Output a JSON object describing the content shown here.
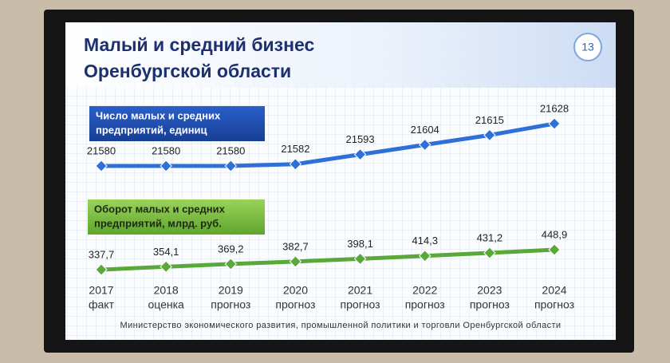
{
  "header": {
    "title": [
      "Малый и средний бизнес",
      "Оренбургской области"
    ],
    "page_number": "13"
  },
  "footer": "Министерство экономического развития, промышленной политики и торговли Оренбургской области",
  "chart_data": [
    {
      "type": "line",
      "title": [
        "Число малых и средних",
        "предприятий, единиц"
      ],
      "color": "#2e6fd8",
      "values": [
        21580,
        21580,
        21580,
        21582,
        21593,
        21604,
        21615,
        21628
      ]
    },
    {
      "type": "line",
      "title": [
        "Оборот малых и средних",
        "предприятий, млрд. руб."
      ],
      "color": "#5aa83a",
      "categories": [
        "2017",
        "2018",
        "2019",
        "2020",
        "2021",
        "2022",
        "2023",
        "2024"
      ],
      "x_sublabels": [
        "факт",
        "оценка",
        "прогноз",
        "прогноз",
        "прогноз",
        "прогноз",
        "прогноз",
        "прогноз"
      ],
      "values": [
        337.7,
        354.1,
        369.2,
        382.7,
        398.1,
        414.3,
        431.2,
        448.9
      ],
      "value_labels": [
        "337,7",
        "354,1",
        "369,2",
        "382,7",
        "398,1",
        "414,3",
        "431,2",
        "448,9"
      ]
    }
  ]
}
